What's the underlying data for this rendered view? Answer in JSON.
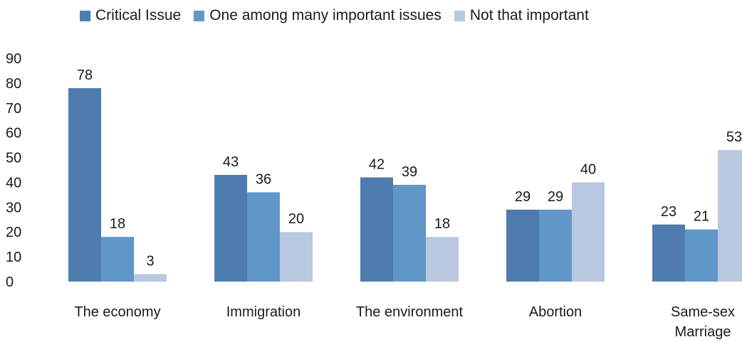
{
  "chart_data": {
    "type": "bar",
    "title": "",
    "xlabel": "",
    "ylabel": "",
    "ylim": [
      0,
      90
    ],
    "yticks": [
      0,
      10,
      20,
      30,
      40,
      50,
      60,
      70,
      80,
      90
    ],
    "grid": false,
    "legend_position": "top",
    "categories": [
      "The economy",
      "Immigration",
      "The environment",
      "Abortion",
      "Same-sex Marriage"
    ],
    "category_lines": [
      [
        "The economy"
      ],
      [
        "Immigration"
      ],
      [
        "The environment"
      ],
      [
        "Abortion"
      ],
      [
        "Same-sex",
        "Marriage"
      ]
    ],
    "series": [
      {
        "name": "Critical Issue",
        "color": "#4f7cae",
        "values": [
          78,
          43,
          42,
          29,
          23
        ]
      },
      {
        "name": "One among many important issues",
        "color": "#6096c8",
        "values": [
          18,
          36,
          39,
          29,
          21
        ]
      },
      {
        "name": "Not that important",
        "color": "#b9c8e0",
        "values": [
          3,
          20,
          18,
          40,
          53
        ]
      }
    ]
  }
}
